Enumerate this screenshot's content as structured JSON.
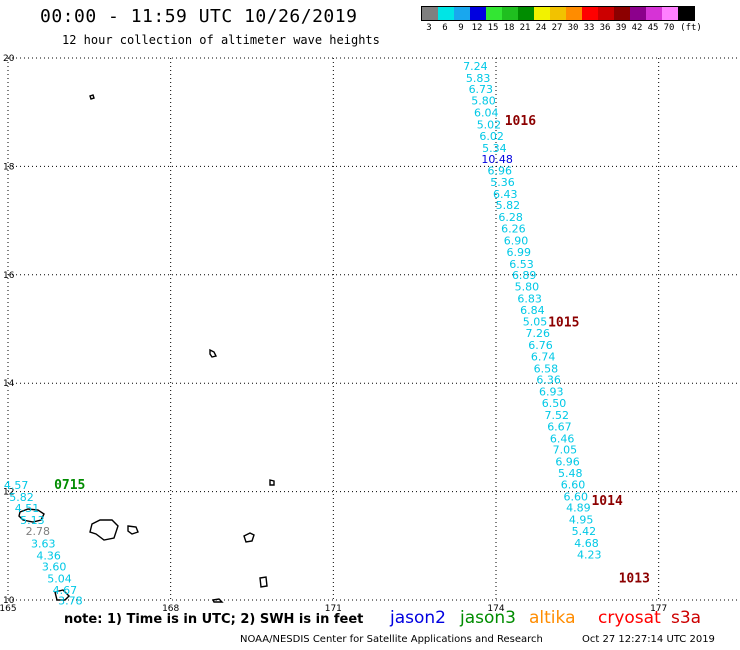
{
  "header": {
    "title": "00:00 - 11:59 UTC 10/26/2019",
    "subtitle": "12 hour collection of altimeter wave heights"
  },
  "legend": {
    "unit": "(ft)",
    "bins": [
      {
        "label": "3",
        "color": "#7f7f7f"
      },
      {
        "label": "6",
        "color": "#00e5e5"
      },
      {
        "label": "9",
        "color": "#19a7ee"
      },
      {
        "label": "12",
        "color": "#0000e0"
      },
      {
        "label": "15",
        "color": "#33e633"
      },
      {
        "label": "18",
        "color": "#1fbf1f"
      },
      {
        "label": "21",
        "color": "#008c00"
      },
      {
        "label": "24",
        "color": "#f2f200"
      },
      {
        "label": "27",
        "color": "#f2c200"
      },
      {
        "label": "30",
        "color": "#ff8c00"
      },
      {
        "label": "33",
        "color": "#ff0000"
      },
      {
        "label": "36",
        "color": "#cc0000"
      },
      {
        "label": "39",
        "color": "#8c0000"
      },
      {
        "label": "42",
        "color": "#8c008c"
      },
      {
        "label": "45",
        "color": "#d633d6"
      },
      {
        "label": "70",
        "color": "#ff80ff"
      },
      {
        "label": "",
        "color": "#000000"
      }
    ]
  },
  "map": {
    "lon_range": [
      165,
      178.5
    ],
    "lat_range": [
      10,
      20
    ],
    "lon_ticks": [
      "165",
      "168",
      "171",
      "174",
      "177"
    ],
    "lat_ticks": [
      "10",
      "12",
      "14",
      "16",
      "18",
      "20"
    ]
  },
  "track_main": {
    "color": "#00c8e6",
    "points": [
      {
        "lon": 173.62,
        "lat": 19.78,
        "v": "7.24"
      },
      {
        "lon": 173.67,
        "lat": 19.56,
        "v": "5.83"
      },
      {
        "lon": 173.72,
        "lat": 19.35,
        "v": "6.73"
      },
      {
        "lon": 173.77,
        "lat": 19.14,
        "v": "5.80"
      },
      {
        "lon": 173.82,
        "lat": 18.92,
        "v": "6.04"
      },
      {
        "lon": 173.87,
        "lat": 18.7,
        "v": "5.02"
      },
      {
        "lon": 173.92,
        "lat": 18.49,
        "v": "6.02"
      },
      {
        "lon": 173.97,
        "lat": 18.27,
        "v": "5.34"
      },
      {
        "lon": 174.02,
        "lat": 18.06,
        "v": "10.48",
        "color": "#0000e0"
      },
      {
        "lon": 174.07,
        "lat": 17.85,
        "v": "6.96"
      },
      {
        "lon": 174.12,
        "lat": 17.64,
        "v": "5.36"
      },
      {
        "lon": 174.17,
        "lat": 17.42,
        "v": "6.43"
      },
      {
        "lon": 174.22,
        "lat": 17.21,
        "v": "5.82"
      },
      {
        "lon": 174.27,
        "lat": 16.99,
        "v": "6.28"
      },
      {
        "lon": 174.32,
        "lat": 16.78,
        "v": "6.26"
      },
      {
        "lon": 174.37,
        "lat": 16.56,
        "v": "6.90"
      },
      {
        "lon": 174.42,
        "lat": 16.35,
        "v": "6.99"
      },
      {
        "lon": 174.47,
        "lat": 16.13,
        "v": "6.53"
      },
      {
        "lon": 174.52,
        "lat": 15.92,
        "v": "6.89"
      },
      {
        "lon": 174.57,
        "lat": 15.71,
        "v": "5.80"
      },
      {
        "lon": 174.62,
        "lat": 15.49,
        "v": "6.83"
      },
      {
        "lon": 174.67,
        "lat": 15.28,
        "v": "6.84"
      },
      {
        "lon": 174.72,
        "lat": 15.06,
        "v": "5.05"
      },
      {
        "lon": 174.77,
        "lat": 14.85,
        "v": "7.26"
      },
      {
        "lon": 174.82,
        "lat": 14.63,
        "v": "6.76"
      },
      {
        "lon": 174.87,
        "lat": 14.42,
        "v": "6.74"
      },
      {
        "lon": 174.92,
        "lat": 14.2,
        "v": "6.58"
      },
      {
        "lon": 174.97,
        "lat": 13.99,
        "v": "6.36"
      },
      {
        "lon": 175.02,
        "lat": 13.77,
        "v": "6.93"
      },
      {
        "lon": 175.07,
        "lat": 13.56,
        "v": "6.50"
      },
      {
        "lon": 175.12,
        "lat": 13.34,
        "v": "7.52"
      },
      {
        "lon": 175.17,
        "lat": 13.13,
        "v": "6.67"
      },
      {
        "lon": 175.22,
        "lat": 12.91,
        "v": "6.46"
      },
      {
        "lon": 175.27,
        "lat": 12.7,
        "v": "7.05"
      },
      {
        "lon": 175.32,
        "lat": 12.48,
        "v": "6.96"
      },
      {
        "lon": 175.37,
        "lat": 12.27,
        "v": "5.48"
      },
      {
        "lon": 175.42,
        "lat": 12.06,
        "v": "6.60"
      },
      {
        "lon": 175.47,
        "lat": 11.84,
        "v": "6.60"
      },
      {
        "lon": 175.52,
        "lat": 11.63,
        "v": "4.89"
      },
      {
        "lon": 175.57,
        "lat": 11.41,
        "v": "4.95"
      },
      {
        "lon": 175.62,
        "lat": 11.2,
        "v": "5.42"
      },
      {
        "lon": 175.67,
        "lat": 10.98,
        "v": "4.68"
      },
      {
        "lon": 175.72,
        "lat": 10.77,
        "v": "4.23"
      }
    ]
  },
  "track_main_times": [
    {
      "lon": 174.45,
      "lat": 18.76,
      "t": "1016"
    },
    {
      "lon": 175.25,
      "lat": 15.05,
      "t": "1015"
    },
    {
      "lon": 176.05,
      "lat": 11.75,
      "t": "1014"
    },
    {
      "lon": 176.55,
      "lat": 10.32,
      "t": "1013"
    }
  ],
  "track_sw": {
    "points": [
      {
        "lon": 165.15,
        "lat": 12.05,
        "v": "4.57",
        "color": "#00c8e6"
      },
      {
        "lon": 165.25,
        "lat": 11.83,
        "v": "5.82",
        "color": "#00c8e6"
      },
      {
        "lon": 165.35,
        "lat": 11.62,
        "v": "4.51",
        "color": "#00c8e6"
      },
      {
        "lon": 165.45,
        "lat": 11.4,
        "v": "5.13",
        "color": "#00c8e6"
      },
      {
        "lon": 165.55,
        "lat": 11.2,
        "v": "2.78",
        "color": "#7f7f7f"
      },
      {
        "lon": 165.65,
        "lat": 10.97,
        "v": "3.63",
        "color": "#00c8e6"
      },
      {
        "lon": 165.75,
        "lat": 10.75,
        "v": "4.36",
        "color": "#00c8e6"
      },
      {
        "lon": 165.85,
        "lat": 10.54,
        "v": "3.60",
        "color": "#00c8e6"
      },
      {
        "lon": 165.95,
        "lat": 10.32,
        "v": "5.04",
        "color": "#00c8e6"
      },
      {
        "lon": 166.05,
        "lat": 10.11,
        "v": "4.67",
        "color": "#00c8e6"
      },
      {
        "lon": 166.15,
        "lat": 9.92,
        "v": "3.78",
        "color": "#00c8e6"
      }
    ],
    "time": {
      "lon": 165.85,
      "lat": 12.05,
      "t": "0715",
      "color": "#008c00"
    }
  },
  "footer": {
    "note": "note: 1) Time is in UTC; 2) SWH is in feet",
    "satellites": [
      {
        "name": "jason2",
        "color": "#0000e0"
      },
      {
        "name": "jason3",
        "color": "#008c00"
      },
      {
        "name": "altika",
        "color": "#ff8c00"
      },
      {
        "name": "cryosat",
        "color": "#ff0000"
      },
      {
        "name": "s3a",
        "color": "#cc0000"
      }
    ],
    "credit": "NOAA/NESDIS Center for Satellite Applications and Research",
    "timestamp": "Oct 27 12:27:14 UTC 2019"
  }
}
